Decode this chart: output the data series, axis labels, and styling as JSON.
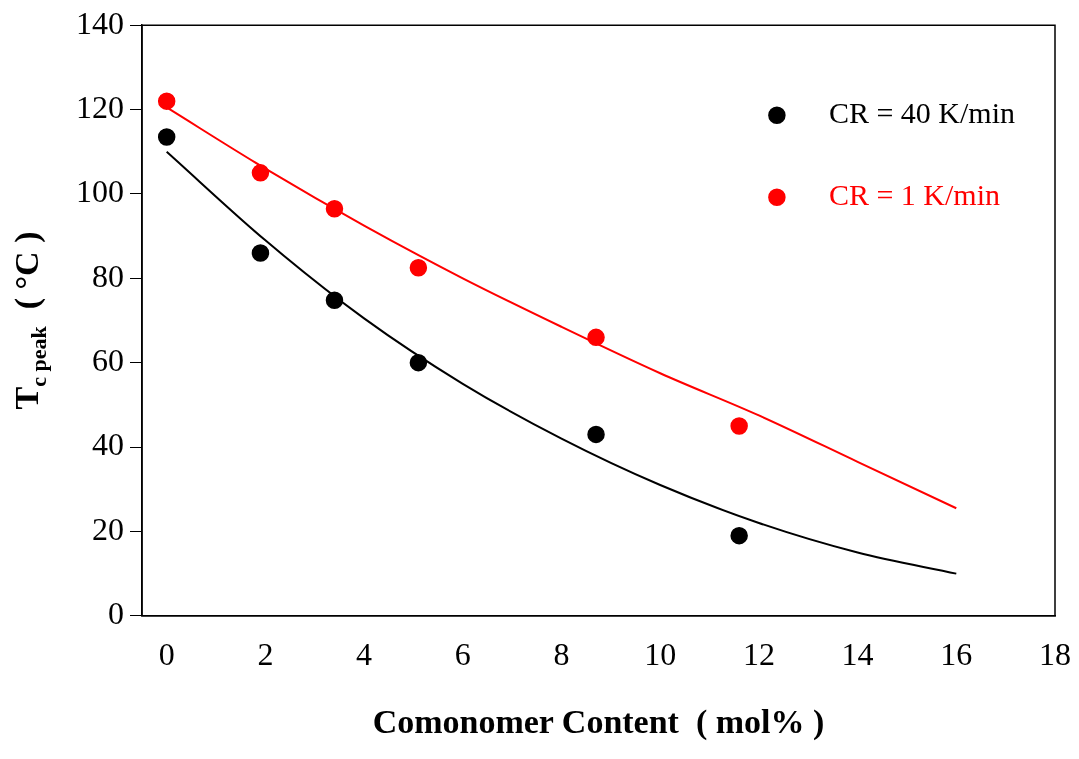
{
  "chart_data": {
    "type": "scatter",
    "xlabel": "Comonomer Content  ( mol% )",
    "ylabel": "T$_{c peak}$  ( °C )",
    "xlim": [
      -0.5,
      18
    ],
    "xticks": [
      0,
      2,
      4,
      6,
      8,
      10,
      12,
      14,
      16,
      18
    ],
    "ylim": [
      0,
      140
    ],
    "yticks": [
      0,
      20,
      40,
      60,
      80,
      100,
      120,
      140
    ],
    "grid": false,
    "legend": "top right",
    "marker": "circle",
    "series": [
      {
        "name": "CR = 40 K/min",
        "color": "#000000",
        "x": [
          0,
          1.9,
          3.4,
          5.1,
          8.7,
          11.6
        ],
        "values": [
          113.5,
          86,
          74.8,
          60,
          43,
          19
        ]
      },
      {
        "name": "CR = 1 K/min",
        "color": "#ff0000",
        "x": [
          0,
          1.9,
          3.4,
          5.1,
          8.7,
          11.6
        ],
        "values": [
          122,
          105,
          96.5,
          82.5,
          66,
          45
        ]
      },
      {
        "type": "line",
        "color": "#000000",
        "marker": "none",
        "x": [
          0,
          2,
          4,
          6,
          8,
          10,
          12,
          14,
          16
        ],
        "values": [
          110,
          89,
          70.5,
          55,
          42,
          31,
          22,
          15,
          10
        ]
      },
      {
        "type": "line",
        "color": "#ff0000",
        "marker": "none",
        "x": [
          0,
          2,
          4,
          6,
          8,
          10,
          12,
          14,
          16
        ],
        "values": [
          120.5,
          106,
          92.5,
          80,
          68.5,
          57.5,
          47.5,
          36.5,
          25.5
        ]
      }
    ]
  }
}
